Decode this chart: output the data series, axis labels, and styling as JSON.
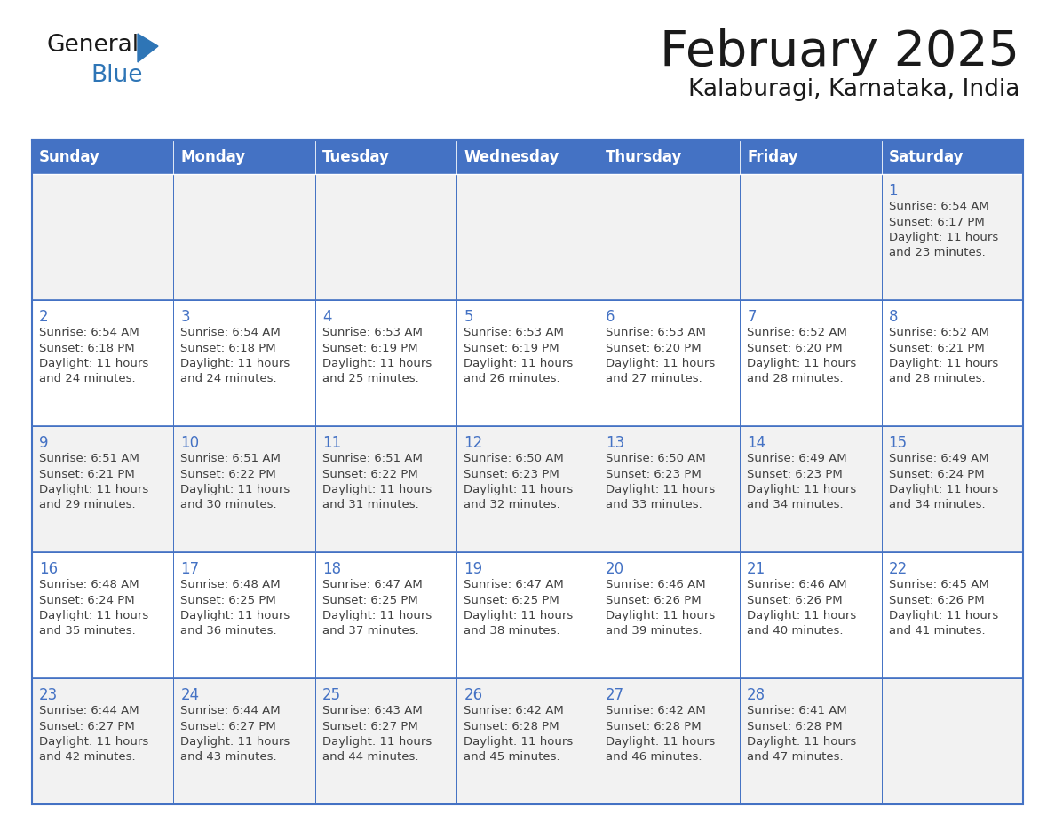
{
  "title": "February 2025",
  "subtitle": "Kalaburagi, Karnataka, India",
  "days_of_week": [
    "Sunday",
    "Monday",
    "Tuesday",
    "Wednesday",
    "Thursday",
    "Friday",
    "Saturday"
  ],
  "header_bg": "#4472C4",
  "header_text": "#FFFFFF",
  "cell_bg_odd": "#F2F2F2",
  "cell_bg_even": "#FFFFFF",
  "cell_border": "#4472C4",
  "title_color": "#1a1a1a",
  "subtitle_color": "#1a1a1a",
  "day_num_color": "#4472C4",
  "cell_text_color": "#404040",
  "logo_general_color": "#1a1a1a",
  "logo_blue_color": "#2E75B6",
  "calendar_data": [
    [
      null,
      null,
      null,
      null,
      null,
      null,
      {
        "day": 1,
        "sunrise": "6:54 AM",
        "sunset": "6:17 PM",
        "daylight": "11 hours and 23 minutes"
      }
    ],
    [
      {
        "day": 2,
        "sunrise": "6:54 AM",
        "sunset": "6:18 PM",
        "daylight": "11 hours and 24 minutes"
      },
      {
        "day": 3,
        "sunrise": "6:54 AM",
        "sunset": "6:18 PM",
        "daylight": "11 hours and 24 minutes"
      },
      {
        "day": 4,
        "sunrise": "6:53 AM",
        "sunset": "6:19 PM",
        "daylight": "11 hours and 25 minutes"
      },
      {
        "day": 5,
        "sunrise": "6:53 AM",
        "sunset": "6:19 PM",
        "daylight": "11 hours and 26 minutes"
      },
      {
        "day": 6,
        "sunrise": "6:53 AM",
        "sunset": "6:20 PM",
        "daylight": "11 hours and 27 minutes"
      },
      {
        "day": 7,
        "sunrise": "6:52 AM",
        "sunset": "6:20 PM",
        "daylight": "11 hours and 28 minutes"
      },
      {
        "day": 8,
        "sunrise": "6:52 AM",
        "sunset": "6:21 PM",
        "daylight": "11 hours and 28 minutes"
      }
    ],
    [
      {
        "day": 9,
        "sunrise": "6:51 AM",
        "sunset": "6:21 PM",
        "daylight": "11 hours and 29 minutes"
      },
      {
        "day": 10,
        "sunrise": "6:51 AM",
        "sunset": "6:22 PM",
        "daylight": "11 hours and 30 minutes"
      },
      {
        "day": 11,
        "sunrise": "6:51 AM",
        "sunset": "6:22 PM",
        "daylight": "11 hours and 31 minutes"
      },
      {
        "day": 12,
        "sunrise": "6:50 AM",
        "sunset": "6:23 PM",
        "daylight": "11 hours and 32 minutes"
      },
      {
        "day": 13,
        "sunrise": "6:50 AM",
        "sunset": "6:23 PM",
        "daylight": "11 hours and 33 minutes"
      },
      {
        "day": 14,
        "sunrise": "6:49 AM",
        "sunset": "6:23 PM",
        "daylight": "11 hours and 34 minutes"
      },
      {
        "day": 15,
        "sunrise": "6:49 AM",
        "sunset": "6:24 PM",
        "daylight": "11 hours and 34 minutes"
      }
    ],
    [
      {
        "day": 16,
        "sunrise": "6:48 AM",
        "sunset": "6:24 PM",
        "daylight": "11 hours and 35 minutes"
      },
      {
        "day": 17,
        "sunrise": "6:48 AM",
        "sunset": "6:25 PM",
        "daylight": "11 hours and 36 minutes"
      },
      {
        "day": 18,
        "sunrise": "6:47 AM",
        "sunset": "6:25 PM",
        "daylight": "11 hours and 37 minutes"
      },
      {
        "day": 19,
        "sunrise": "6:47 AM",
        "sunset": "6:25 PM",
        "daylight": "11 hours and 38 minutes"
      },
      {
        "day": 20,
        "sunrise": "6:46 AM",
        "sunset": "6:26 PM",
        "daylight": "11 hours and 39 minutes"
      },
      {
        "day": 21,
        "sunrise": "6:46 AM",
        "sunset": "6:26 PM",
        "daylight": "11 hours and 40 minutes"
      },
      {
        "day": 22,
        "sunrise": "6:45 AM",
        "sunset": "6:26 PM",
        "daylight": "11 hours and 41 minutes"
      }
    ],
    [
      {
        "day": 23,
        "sunrise": "6:44 AM",
        "sunset": "6:27 PM",
        "daylight": "11 hours and 42 minutes"
      },
      {
        "day": 24,
        "sunrise": "6:44 AM",
        "sunset": "6:27 PM",
        "daylight": "11 hours and 43 minutes"
      },
      {
        "day": 25,
        "sunrise": "6:43 AM",
        "sunset": "6:27 PM",
        "daylight": "11 hours and 44 minutes"
      },
      {
        "day": 26,
        "sunrise": "6:42 AM",
        "sunset": "6:28 PM",
        "daylight": "11 hours and 45 minutes"
      },
      {
        "day": 27,
        "sunrise": "6:42 AM",
        "sunset": "6:28 PM",
        "daylight": "11 hours and 46 minutes"
      },
      {
        "day": 28,
        "sunrise": "6:41 AM",
        "sunset": "6:28 PM",
        "daylight": "11 hours and 47 minutes"
      },
      null
    ]
  ]
}
